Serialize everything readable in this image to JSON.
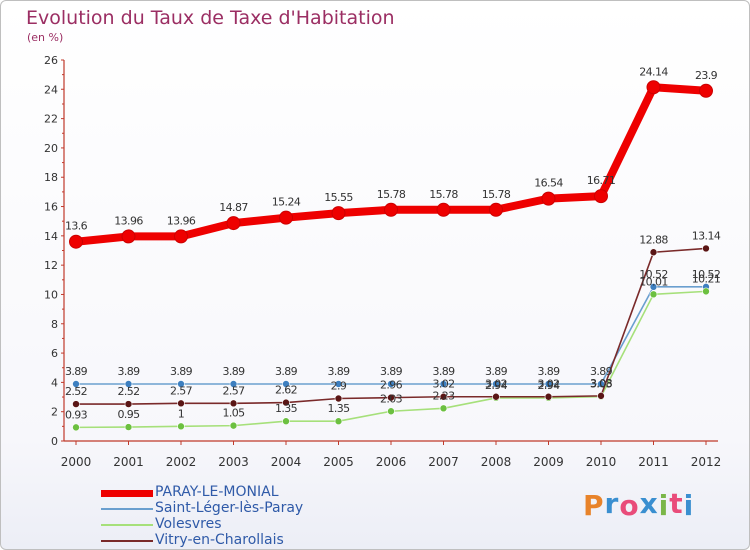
{
  "title": "Evolution du Taux de Taxe d'Habitation",
  "unit_label": "(en %)",
  "logo_text": "Proxiti",
  "logo_colors": [
    "#e8832a",
    "#3a8fd0",
    "#e94c7a",
    "#3a8fd0",
    "#7ab648",
    "#e94c7a",
    "#3a8fd0"
  ],
  "chart_data": {
    "type": "line",
    "title": "Evolution du Taux de Taxe d'Habitation",
    "ylabel": "(en %)",
    "xlabel": "",
    "x": [
      "2000",
      "2001",
      "2002",
      "2003",
      "2004",
      "2005",
      "2006",
      "2007",
      "2008",
      "2009",
      "2010",
      "2011",
      "2012"
    ],
    "ylim": [
      0,
      26
    ],
    "yticks": [
      0,
      2,
      4,
      6,
      8,
      10,
      12,
      14,
      16,
      18,
      20,
      22,
      24,
      26
    ],
    "grid": false,
    "legend_position": "bottom-left",
    "series": [
      {
        "name": "PARAY-LE-MONIAL",
        "color": "#ee0000",
        "marker_color": "#ee0000",
        "values": [
          13.6,
          13.96,
          13.96,
          14.87,
          15.24,
          15.55,
          15.78,
          15.78,
          15.78,
          16.54,
          16.71,
          24.14,
          23.9
        ],
        "labels": [
          "13.6",
          "13.96",
          "13.96",
          "14.87",
          "15.24",
          "15.55",
          "15.78",
          "15.78",
          "15.78",
          "16.54",
          "16.71",
          "24.14",
          "23.9"
        ]
      },
      {
        "name": "Saint-Léger-lès-Paray",
        "color": "#6a9fcf",
        "marker_color": "#3d7fc0",
        "values": [
          3.89,
          3.89,
          3.89,
          3.89,
          3.89,
          3.89,
          3.89,
          3.89,
          3.89,
          3.89,
          3.89,
          10.52,
          10.52
        ],
        "labels": [
          "3.89",
          "3.89",
          "3.89",
          "3.89",
          "3.89",
          "3.89",
          "3.89",
          "3.89",
          "3.89",
          "3.89",
          "3.89",
          "10.52",
          "10.52"
        ]
      },
      {
        "name": "Volesvres",
        "color": "#a6e07a",
        "marker_color": "#6cc040",
        "values": [
          0.93,
          0.95,
          1,
          1.05,
          1.35,
          1.35,
          2.03,
          2.23,
          2.94,
          2.94,
          3.03,
          10.01,
          10.21
        ],
        "labels": [
          "0.93",
          "0.95",
          "1",
          "1.05",
          "1.35",
          "1.35",
          "2.03",
          "2.23",
          "2.94",
          "2.94",
          "3.03",
          "10.01",
          "10.21"
        ]
      },
      {
        "name": "Vitry-en-Charollais",
        "color": "#7a2a2a",
        "marker_color": "#5a1515",
        "values": [
          2.52,
          2.52,
          2.57,
          2.57,
          2.62,
          2.9,
          2.96,
          3.02,
          3.02,
          3.02,
          3.08,
          12.88,
          13.14
        ],
        "labels": [
          "2.52",
          "2.52",
          "2.57",
          "2.57",
          "2.62",
          "2.9",
          "2.96",
          "3.02",
          "3.02",
          "3.02",
          "3.08",
          "12.88",
          "13.14"
        ]
      }
    ]
  }
}
